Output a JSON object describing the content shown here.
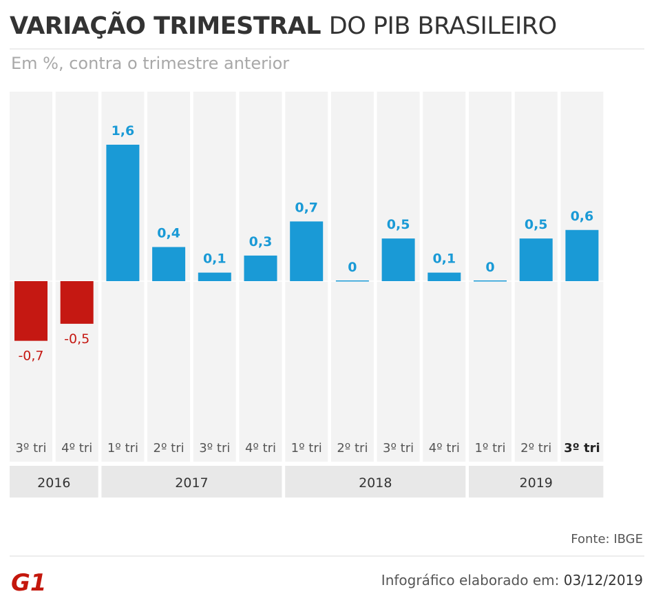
{
  "header": {
    "title_bold": "VARIAÇÃO TRIMESTRAL",
    "title_light": "DO PIB BRASILEIRO",
    "subtitle": "Em %, contra o trimestre anterior"
  },
  "colors": {
    "positive": "#1a9ad6",
    "negative": "#c51812",
    "column_background": "#f3f3f3",
    "year_band": "#e8e8e8",
    "text": "#333333",
    "logo": "#c4170c"
  },
  "chart_data": {
    "type": "bar",
    "title": "VARIAÇÃO TRIMESTRAL DO PIB BRASILEIRO",
    "subtitle": "Em %, contra o trimestre anterior",
    "categories": [
      "3º tri",
      "4º tri",
      "1º tri",
      "2º tri",
      "3º tri",
      "4º tri",
      "1º tri",
      "2º tri",
      "3º tri",
      "4º tri",
      "1º tri",
      "2º tri",
      "3º tri"
    ],
    "value_labels": [
      "-0,7",
      "-0,5",
      "1,6",
      "0,4",
      "0,1",
      "0,3",
      "0,7",
      "0",
      "0,5",
      "0,1",
      "0",
      "0,5",
      "0,6"
    ],
    "values": [
      -0.7,
      -0.5,
      1.6,
      0.4,
      0.1,
      0.3,
      0.7,
      0,
      0.5,
      0.1,
      0,
      0.5,
      0.6
    ],
    "highlight_last": true,
    "year_groups": [
      {
        "label": "2016",
        "count": 2
      },
      {
        "label": "2017",
        "count": 4
      },
      {
        "label": "2018",
        "count": 4
      },
      {
        "label": "2019",
        "count": 3
      }
    ],
    "ylim": [
      -1.6,
      2.2
    ],
    "grid": false
  },
  "footer": {
    "source": "Fonte: IBGE",
    "logo_text": "G1",
    "note_prefix": "Infográfico elaborado em:",
    "note_date": "03/12/2019"
  }
}
